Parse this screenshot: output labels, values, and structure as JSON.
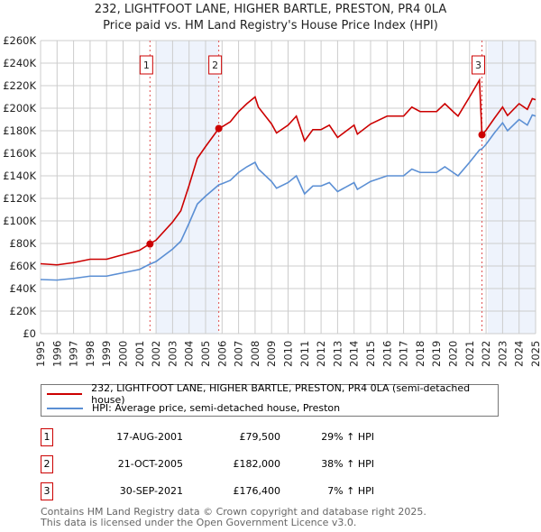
{
  "chart_data": {
    "type": "line",
    "title": "232, LIGHTFOOT LANE, HIGHER BARTLE, PRESTON, PR4 0LA",
    "subtitle": "Price paid vs. HM Land Registry's House Price Index (HPI)",
    "xlim": [
      1995,
      2025
    ],
    "ylim": [
      0,
      260000
    ],
    "y_ticks": [
      {
        "v": 0,
        "label": "£0"
      },
      {
        "v": 20000,
        "label": "£20K"
      },
      {
        "v": 40000,
        "label": "£40K"
      },
      {
        "v": 60000,
        "label": "£60K"
      },
      {
        "v": 80000,
        "label": "£80K"
      },
      {
        "v": 100000,
        "label": "£100K"
      },
      {
        "v": 120000,
        "label": "£120K"
      },
      {
        "v": 140000,
        "label": "£140K"
      },
      {
        "v": 160000,
        "label": "£160K"
      },
      {
        "v": 180000,
        "label": "£180K"
      },
      {
        "v": 200000,
        "label": "£200K"
      },
      {
        "v": 220000,
        "label": "£220K"
      },
      {
        "v": 240000,
        "label": "£240K"
      },
      {
        "v": 260000,
        "label": "£260K"
      }
    ],
    "x_ticks": [
      "1995",
      "1996",
      "1997",
      "1998",
      "1999",
      "2000",
      "2001",
      "2002",
      "2003",
      "2004",
      "2005",
      "2006",
      "2007",
      "2008",
      "2009",
      "2010",
      "2011",
      "2012",
      "2013",
      "2014",
      "2015",
      "2016",
      "2017",
      "2018",
      "2019",
      "2020",
      "2021",
      "2022",
      "2023",
      "2024",
      "2025"
    ],
    "grid": true,
    "x": [
      1995,
      1996,
      1997,
      1998,
      1999,
      2000,
      2001,
      2001.6,
      2002,
      2003,
      2003.5,
      2004,
      2004.5,
      2005,
      2005.8,
      2006,
      2006.5,
      2007,
      2007.5,
      2008,
      2008.2,
      2009,
      2009.3,
      2010,
      2010.5,
      2011,
      2011.5,
      2012,
      2012.5,
      2013,
      2014,
      2014.2,
      2015,
      2016,
      2017,
      2017.5,
      2018,
      2019,
      2019.5,
      2020,
      2020.3,
      2021,
      2021.6,
      2021.75,
      2022,
      2022.5,
      2023,
      2023.3,
      2024,
      2024.5,
      2024.8,
      2025
    ],
    "series": [
      {
        "name": "232, LIGHTFOOT LANE, HIGHER BARTLE, PRESTON, PR4 0LA (semi-detached house)",
        "color": "#cc0000",
        "values": [
          62000,
          61000,
          63000,
          66000,
          66000,
          70000,
          74000,
          79500,
          83000,
          99000,
          109000,
          131500,
          155500,
          166000,
          182000,
          183500,
          188000,
          197000,
          204000,
          210000,
          201000,
          186000,
          178000,
          185000,
          193000,
          171000,
          181000,
          181000,
          185000,
          174000,
          185000,
          177000,
          186000,
          193000,
          193000,
          201000,
          197000,
          197000,
          204000,
          197000,
          193000,
          210000,
          225000,
          176400,
          180500,
          191000,
          201000,
          193500,
          204000,
          199000,
          208500,
          207500
        ]
      },
      {
        "name": "HPI: Average price, semi-detached house, Preston",
        "color": "#5b8fd4",
        "values": [
          48000,
          47500,
          49000,
          51000,
          51000,
          54000,
          57000,
          61500,
          64000,
          75000,
          82000,
          98000,
          115000,
          122000,
          132000,
          133000,
          136000,
          143000,
          148000,
          152000,
          146000,
          135000,
          129000,
          134000,
          140000,
          124000,
          131000,
          131000,
          134000,
          126000,
          134000,
          128000,
          135000,
          140000,
          140000,
          146000,
          143000,
          143000,
          148000,
          143000,
          140000,
          152000,
          163000,
          164000,
          168000,
          178000,
          187000,
          180000,
          190000,
          185000,
          194000,
          193000
        ]
      }
    ],
    "shaded_ranges": [
      [
        2002.0,
        2005.8
      ],
      [
        2022.1,
        2025
      ]
    ],
    "sales": [
      {
        "num": "1",
        "x": 2001.63,
        "price": 79500,
        "date": "17-AUG-2001",
        "price_label": "£79,500",
        "hpi": "29% ↑ HPI"
      },
      {
        "num": "2",
        "x": 2005.8,
        "price": 182000,
        "date": "21-OCT-2005",
        "price_label": "£182,000",
        "hpi": "38% ↑ HPI"
      },
      {
        "num": "3",
        "x": 2021.75,
        "price": 176400,
        "date": "30-SEP-2021",
        "price_label": "£176,400",
        "hpi": "7% ↑ HPI"
      }
    ]
  },
  "footer": {
    "line1": "Contains HM Land Registry data © Crown copyright and database right 2025.",
    "line2": "This data is licensed under the Open Government Licence v3.0."
  }
}
